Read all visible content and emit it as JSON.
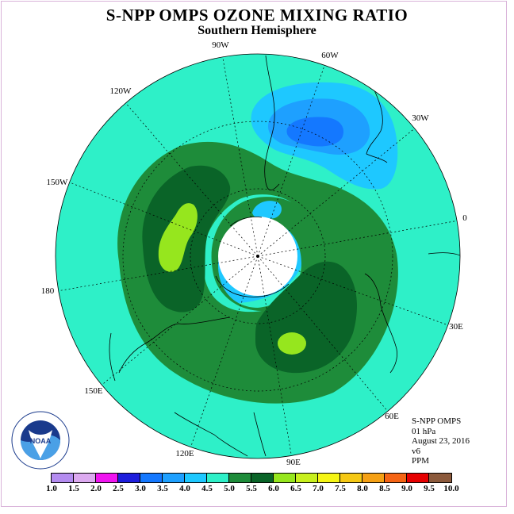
{
  "header": {
    "title": "S-NPP OMPS OZONE MIXING RATIO",
    "subtitle": "Southern Hemisphere"
  },
  "map": {
    "projection": "south-polar-stereographic",
    "longitude_labels": [
      "90W",
      "60W",
      "30W",
      "0",
      "30E",
      "60E",
      "90E",
      "120E",
      "150E",
      "180",
      "150W",
      "120W"
    ],
    "regions": [
      {
        "level": "5.0-5.5",
        "color": "#1e8c3a"
      },
      {
        "level": "5.5-6.0",
        "color": "#0a6428"
      },
      {
        "level": "6.0-6.5",
        "color": "#96e61e"
      },
      {
        "level": "4.0-4.5",
        "color": "#1ec8ff"
      },
      {
        "level": "3.5-4.0",
        "color": "#1ea0ff"
      },
      {
        "level": "3.0-3.5",
        "color": "#1478ff"
      },
      {
        "level": "4.5-5.0",
        "color": "#2ef0c8"
      }
    ],
    "pole_missing_color": "#ffffff"
  },
  "info": {
    "instrument": "S-NPP OMPS",
    "pressure": "01 hPa",
    "date": "August 23, 2016",
    "version": "v6",
    "units": "PPM"
  },
  "logo": {
    "text": "NOAA",
    "ring_text": "NATIONAL OCEANIC AND ATMOSPHERIC ADMINISTRATION",
    "ring_text_bottom": "U.S. DEPARTMENT OF COMMERCE"
  },
  "colorbar": {
    "tick_labels": [
      "1.0",
      "1.5",
      "2.0",
      "2.5",
      "3.0",
      "3.5",
      "4.0",
      "4.5",
      "5.0",
      "5.5",
      "6.0",
      "6.5",
      "7.0",
      "7.5",
      "8.0",
      "8.5",
      "9.0",
      "9.5",
      "10.0"
    ],
    "colors": [
      "#b48cf0",
      "#dcaaf0",
      "#f014f0",
      "#1e1edc",
      "#1478ff",
      "#1ea0ff",
      "#1ec8ff",
      "#2ef0c8",
      "#1e8c3a",
      "#0a6428",
      "#96e61e",
      "#c8f01e",
      "#f5f514",
      "#f5c814",
      "#f5a014",
      "#f56414",
      "#e60000",
      "#8c5a3c"
    ]
  }
}
